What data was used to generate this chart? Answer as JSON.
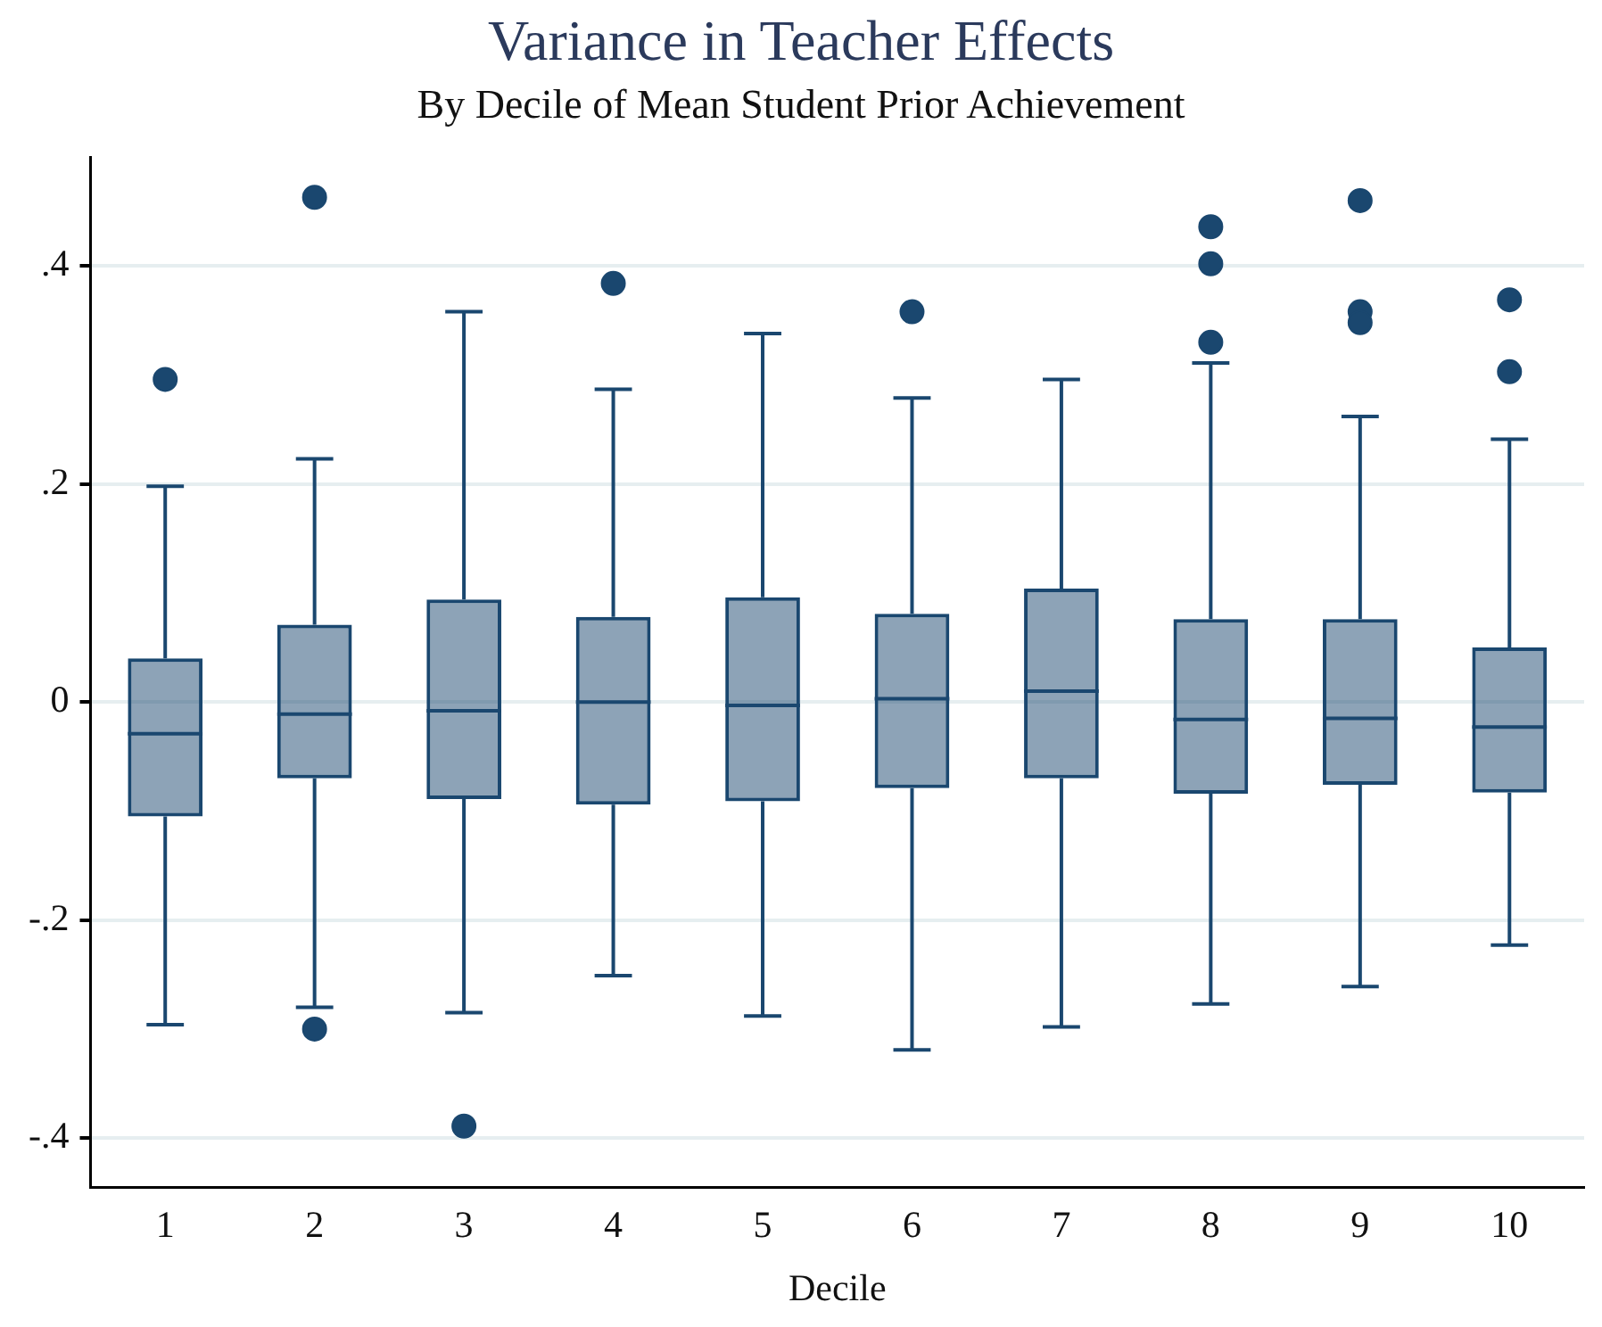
{
  "chart_data": {
    "type": "box",
    "title": "Variance in Teacher Effects",
    "subtitle": "By Decile of Mean Student Prior Achievement",
    "xlabel": "Decile",
    "categories": [
      "1",
      "2",
      "3",
      "4",
      "5",
      "6",
      "7",
      "8",
      "9",
      "10"
    ],
    "color": "#1a476f",
    "marker": "circle",
    "grid": "y",
    "ylim": [
      -0.445,
      0.5
    ],
    "yticks": [
      {
        "value": -0.4,
        "label": "-.4"
      },
      {
        "value": -0.2,
        "label": "-.2"
      },
      {
        "value": 0,
        "label": "0"
      },
      {
        "value": 0.2,
        "label": ".2"
      },
      {
        "value": 0.4,
        "label": ".4"
      }
    ],
    "boxes": [
      {
        "low": -0.296,
        "q1": -0.105,
        "median": -0.029,
        "q3": 0.04,
        "high": 0.198,
        "outliers": [
          0.296
        ]
      },
      {
        "low": -0.28,
        "q1": -0.07,
        "median": -0.011,
        "q3": 0.071,
        "high": 0.223,
        "outliers": [
          0.463,
          -0.3
        ]
      },
      {
        "low": -0.285,
        "q1": -0.089,
        "median": -0.008,
        "q3": 0.094,
        "high": 0.358,
        "outliers": [
          -0.389
        ]
      },
      {
        "low": -0.251,
        "q1": -0.094,
        "median": 0,
        "q3": 0.078,
        "high": 0.287,
        "outliers": [
          0.384
        ]
      },
      {
        "low": -0.288,
        "q1": -0.091,
        "median": -0.003,
        "q3": 0.096,
        "high": 0.338
      },
      {
        "low": -0.319,
        "q1": -0.079,
        "median": 0.003,
        "q3": 0.081,
        "high": 0.279,
        "outliers": [
          0.358
        ]
      },
      {
        "low": -0.298,
        "q1": -0.07,
        "median": 0.01,
        "q3": 0.104,
        "high": 0.296
      },
      {
        "low": -0.277,
        "q1": -0.084,
        "median": -0.016,
        "q3": 0.076,
        "high": 0.311,
        "outliers": [
          0.436,
          0.402,
          0.33
        ]
      },
      {
        "low": -0.261,
        "q1": -0.076,
        "median": -0.015,
        "q3": 0.076,
        "high": 0.262,
        "outliers": [
          0.46,
          0.358,
          0.348
        ]
      },
      {
        "low": -0.223,
        "q1": -0.083,
        "median": -0.023,
        "q3": 0.05,
        "high": 0.241,
        "outliers": [
          0.369,
          0.303
        ]
      }
    ]
  }
}
